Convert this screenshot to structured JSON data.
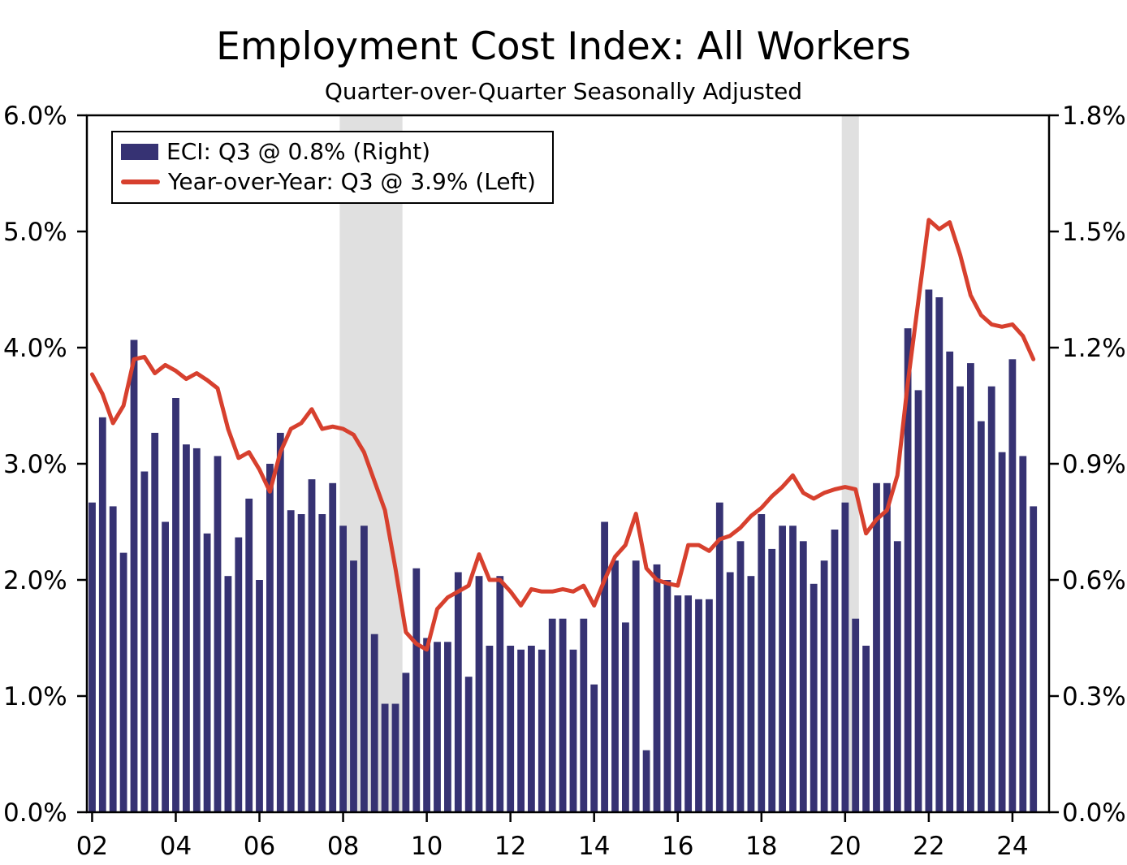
{
  "title": "Employment Cost Index: All Workers",
  "subtitle": "Quarter-over-Quarter Seasonally Adjusted",
  "chart_data": {
    "type": "bar+line",
    "x_start": 2002.0,
    "x_step": 0.25,
    "x_domain": [
      2001.875,
      2024.875
    ],
    "left_axis": {
      "min": 0,
      "max": 6,
      "ticks": [
        {
          "label": "6.0%",
          "value": 6
        },
        {
          "label": "5.0%",
          "value": 5
        },
        {
          "label": "4.0%",
          "value": 4
        },
        {
          "label": "3.0%",
          "value": 3
        },
        {
          "label": "2.0%",
          "value": 2
        },
        {
          "label": "1.0%",
          "value": 1
        },
        {
          "label": "0.0%",
          "value": 0
        }
      ]
    },
    "right_axis": {
      "min": 0,
      "max": 1.8,
      "ticks": [
        {
          "label": "1.8%",
          "value": 1.8
        },
        {
          "label": "1.5%",
          "value": 1.5
        },
        {
          "label": "1.2%",
          "value": 1.2
        },
        {
          "label": "0.9%",
          "value": 0.9
        },
        {
          "label": "0.6%",
          "value": 0.6
        },
        {
          "label": "0.3%",
          "value": 0.3
        },
        {
          "label": "0.0%",
          "value": 0
        }
      ]
    },
    "x_axis": {
      "ticks": [
        {
          "label": "02",
          "value": 2002
        },
        {
          "label": "04",
          "value": 2004
        },
        {
          "label": "06",
          "value": 2006
        },
        {
          "label": "08",
          "value": 2008
        },
        {
          "label": "10",
          "value": 2010
        },
        {
          "label": "12",
          "value": 2012
        },
        {
          "label": "14",
          "value": 2014
        },
        {
          "label": "16",
          "value": 2016
        },
        {
          "label": "18",
          "value": 2018
        },
        {
          "label": "20",
          "value": 2020
        },
        {
          "label": "22",
          "value": 2022
        },
        {
          "label": "24",
          "value": 2024
        }
      ]
    },
    "recessions": [
      {
        "start": 2007.92,
        "end": 2009.42
      },
      {
        "start": 2019.92,
        "end": 2020.33
      }
    ],
    "colors": {
      "recession_band": "#e0e0e0",
      "axis": "#000000",
      "background": "#ffffff"
    },
    "series": [
      {
        "name": "ECI: Q3 @ 0.8% (Right)",
        "type": "bar",
        "axis": "right",
        "color": "#363273",
        "values": [
          0.8,
          1.02,
          0.79,
          0.67,
          1.22,
          0.88,
          0.98,
          0.75,
          1.07,
          0.95,
          0.94,
          0.72,
          0.92,
          0.61,
          0.71,
          0.81,
          0.6,
          0.9,
          0.98,
          0.78,
          0.77,
          0.86,
          0.77,
          0.85,
          0.74,
          0.65,
          0.74,
          0.46,
          0.28,
          0.28,
          0.36,
          0.63,
          0.45,
          0.44,
          0.44,
          0.62,
          0.35,
          0.61,
          0.43,
          0.61,
          0.43,
          0.42,
          0.43,
          0.42,
          0.5,
          0.5,
          0.42,
          0.5,
          0.33,
          0.75,
          0.65,
          0.49,
          0.65,
          0.16,
          0.64,
          0.6,
          0.56,
          0.56,
          0.55,
          0.55,
          0.8,
          0.62,
          0.7,
          0.61,
          0.77,
          0.68,
          0.74,
          0.74,
          0.7,
          0.59,
          0.65,
          0.73,
          0.8,
          0.5,
          0.43,
          0.85,
          0.85,
          0.7,
          1.25,
          1.09,
          1.35,
          1.33,
          1.19,
          1.1,
          1.16,
          1.01,
          1.1,
          0.93,
          1.17,
          0.92,
          0.79
        ]
      },
      {
        "name": "Year-over-Year: Q3 @ 3.9% (Left)",
        "type": "line",
        "axis": "left",
        "color": "#d7402e",
        "values": [
          3.77,
          3.6,
          3.35,
          3.5,
          3.9,
          3.92,
          3.78,
          3.85,
          3.8,
          3.73,
          3.78,
          3.72,
          3.65,
          3.3,
          3.05,
          3.1,
          2.95,
          2.76,
          3.1,
          3.3,
          3.35,
          3.47,
          3.3,
          3.32,
          3.3,
          3.25,
          3.1,
          2.85,
          2.6,
          2.1,
          1.55,
          1.45,
          1.4,
          1.75,
          1.85,
          1.9,
          1.95,
          2.22,
          2.0,
          2.0,
          1.9,
          1.78,
          1.92,
          1.9,
          1.9,
          1.92,
          1.9,
          1.95,
          1.78,
          2.0,
          2.2,
          2.3,
          2.57,
          2.1,
          2.0,
          1.97,
          1.95,
          2.3,
          2.3,
          2.25,
          2.35,
          2.38,
          2.45,
          2.55,
          2.62,
          2.72,
          2.8,
          2.9,
          2.75,
          2.7,
          2.75,
          2.78,
          2.8,
          2.78,
          2.4,
          2.52,
          2.6,
          2.9,
          3.7,
          4.4,
          5.1,
          5.02,
          5.08,
          4.8,
          4.45,
          4.28,
          4.2,
          4.18,
          4.2,
          4.1,
          3.9
        ]
      }
    ]
  }
}
